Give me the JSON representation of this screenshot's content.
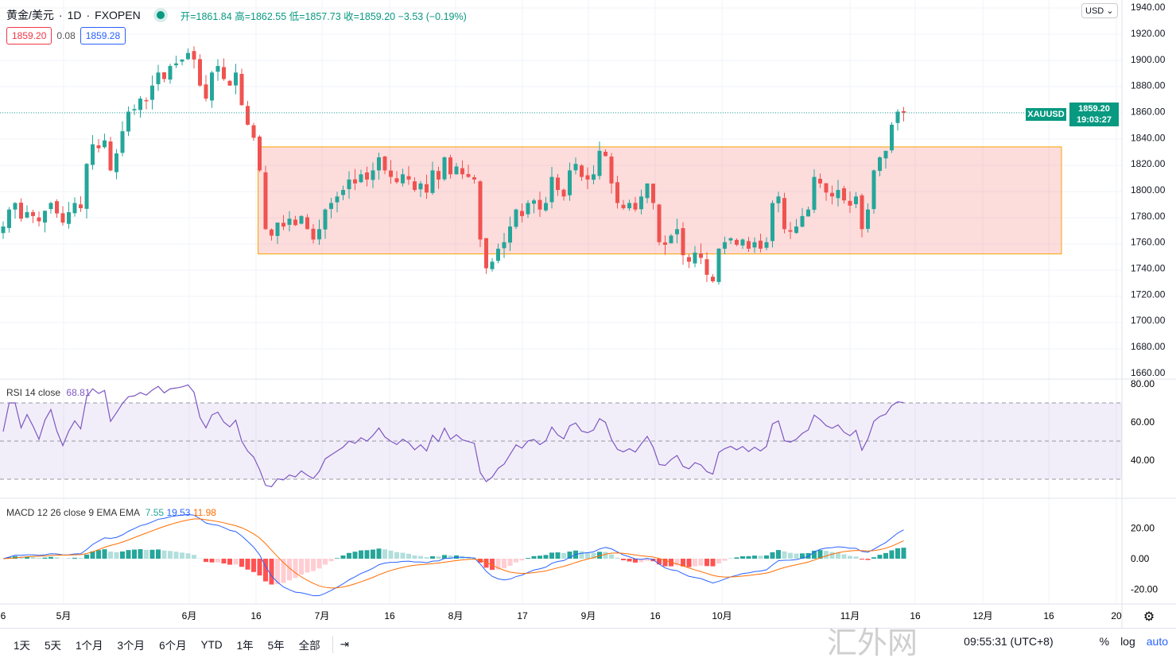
{
  "header": {
    "symbol": "黄金/美元",
    "interval": "1D",
    "exchange": "FXOPEN",
    "open": "开=1861.84",
    "high": "高=1862.55",
    "low": "低=1857.73",
    "close": "收=1859.20",
    "change": "−3.53 (−0.19%)",
    "sell": "1859.20",
    "spread": "0.08",
    "buy": "1859.28",
    "currency": "USD"
  },
  "price_tag": {
    "label": "XAUUSD",
    "price": "1859.20",
    "countdown": "19:03:27"
  },
  "rsi_legend": {
    "name": "RSI 14 close",
    "value": "68.81"
  },
  "macd_legend": {
    "name": "MACD 12 26 close 9 EMA EMA",
    "hist": "7.55",
    "macd": "19.53",
    "signal": "11.98"
  },
  "bottom": {
    "ranges": [
      "1天",
      "5天",
      "1个月",
      "3个月",
      "6个月",
      "YTD",
      "1年",
      "5年",
      "全部"
    ],
    "time": "09:55:31 (UTC+8)",
    "pct": "%",
    "log": "log",
    "auto": "auto",
    "watermark": "汇外网"
  },
  "colors": {
    "up": "#26a69a",
    "down": "#ef5350",
    "zone": "#f7a600",
    "rsi": "#7e57c2",
    "macd": "#2962ff",
    "signal": "#ff6d00"
  },
  "chart_data": {
    "type": "candlestick",
    "title": "黄金/美元 · 1D · FXOPEN",
    "ylim": [
      1655,
      1945
    ],
    "yticks": [
      "1940.00",
      "1920.00",
      "1900.00",
      "1880.00",
      "1860.00",
      "1840.00",
      "1820.00",
      "1800.00",
      "1780.00",
      "1760.00",
      "1740.00",
      "1720.00",
      "1700.00",
      "1680.00",
      "1660.00"
    ],
    "xticks": [
      "6",
      "5月",
      "6月",
      "16",
      "7月",
      "16",
      "8月",
      "17",
      "9月",
      "16",
      "10月",
      "11月",
      "16",
      "12月",
      "16",
      "20"
    ],
    "closes": [
      1772,
      1785,
      1790,
      1778,
      1783,
      1780,
      1776,
      1784,
      1790,
      1782,
      1775,
      1783,
      1790,
      1786,
      1820,
      1835,
      1832,
      1838,
      1815,
      1828,
      1845,
      1860,
      1862,
      1870,
      1868,
      1880,
      1890,
      1885,
      1895,
      1897,
      1900,
      1905,
      1900,
      1880,
      1870,
      1890,
      1895,
      1885,
      1880,
      1890,
      1865,
      1850,
      1840,
      1815,
      1770,
      1765,
      1775,
      1772,
      1778,
      1773,
      1780,
      1770,
      1762,
      1770,
      1785,
      1790,
      1795,
      1800,
      1808,
      1805,
      1812,
      1808,
      1815,
      1825,
      1815,
      1810,
      1806,
      1812,
      1808,
      1800,
      1805,
      1798,
      1815,
      1808,
      1825,
      1812,
      1818,
      1812,
      1810,
      1808,
      1762,
      1740,
      1745,
      1755,
      1760,
      1772,
      1785,
      1780,
      1790,
      1792,
      1785,
      1790,
      1810,
      1800,
      1795,
      1815,
      1820,
      1810,
      1808,
      1812,
      1830,
      1826,
      1805,
      1790,
      1786,
      1790,
      1785,
      1795,
      1805,
      1790,
      1760,
      1758,
      1765,
      1770,
      1750,
      1745,
      1752,
      1748,
      1735,
      1730,
      1755,
      1760,
      1763,
      1758,
      1762,
      1755,
      1760,
      1755,
      1760,
      1790,
      1795,
      1770,
      1768,
      1772,
      1780,
      1785,
      1810,
      1805,
      1798,
      1795,
      1800,
      1792,
      1788,
      1795,
      1770,
      1785,
      1815,
      1825,
      1830,
      1850,
      1860,
      1859.2
    ],
    "zone": {
      "top": 1833,
      "bottom": 1751,
      "start_index": 43
    },
    "rsi": {
      "period": 14,
      "levels": [
        70,
        50,
        30
      ],
      "yticks": [
        "80.00",
        "60.00",
        "40.00"
      ]
    },
    "macd": {
      "fast": 12,
      "slow": 26,
      "signal": 9,
      "yticks": [
        "20.00",
        "0.00",
        "-20.00"
      ]
    }
  }
}
